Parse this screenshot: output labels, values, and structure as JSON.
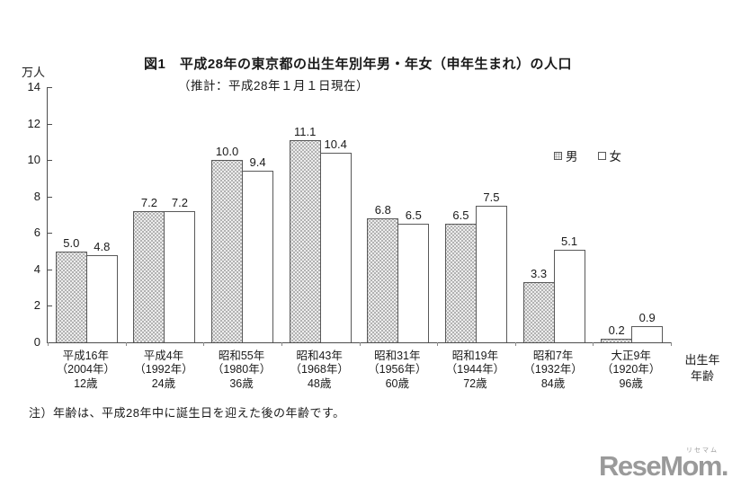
{
  "header": {
    "title": "図1　平成28年の東京都の出生年別年男・年女（申年生まれ）の人口",
    "subtitle": "（推計：平成28年１月１日現在）"
  },
  "axes": {
    "y_unit": "万人",
    "x_caption_line1": "出生年",
    "x_caption_line2": "年齢"
  },
  "legend": {
    "male": "男",
    "female": "女"
  },
  "footnote": "注）年齢は、平成28年中に誕生日を迎えた後の年齢です。",
  "logo": {
    "text": "ReseMom.",
    "kana": "リセマム"
  },
  "chart_data": {
    "type": "bar",
    "title": "図1　平成28年の東京都の出生年別年男・年女（申年生まれ）の人口",
    "subtitle": "（推計：平成28年１月１日現在）",
    "ylabel": "万人",
    "xlabel": "出生年 年齢",
    "ylim": [
      0,
      14
    ],
    "ytick_step": 2,
    "grid": false,
    "legend_position": "upper-right",
    "value_labels": true,
    "categories": [
      {
        "era": "平成16年",
        "western": "（2004年）",
        "age": "12歳"
      },
      {
        "era": "平成4年",
        "western": "（1992年）",
        "age": "24歳"
      },
      {
        "era": "昭和55年",
        "western": "（1980年）",
        "age": "36歳"
      },
      {
        "era": "昭和43年",
        "western": "（1968年）",
        "age": "48歳"
      },
      {
        "era": "昭和31年",
        "western": "（1956年）",
        "age": "60歳"
      },
      {
        "era": "昭和19年",
        "western": "（1944年）",
        "age": "72歳"
      },
      {
        "era": "昭和7年",
        "western": "（1932年）",
        "age": "84歳"
      },
      {
        "era": "大正9年",
        "western": "（1920年）",
        "age": "96歳"
      }
    ],
    "series": [
      {
        "name": "男",
        "values": [
          5.0,
          7.2,
          10.0,
          11.1,
          6.8,
          6.5,
          3.3,
          0.2
        ]
      },
      {
        "name": "女",
        "values": [
          4.8,
          7.2,
          9.4,
          10.4,
          6.5,
          7.5,
          5.1,
          0.9
        ]
      }
    ],
    "colors": {
      "male_fill": "#ececec",
      "male_dot": "#9e9e9e",
      "female_fill": "#ffffff",
      "bar_border": "#595959",
      "axis": "#4d4d4d",
      "logo_gray": "#9a9a9a"
    }
  }
}
